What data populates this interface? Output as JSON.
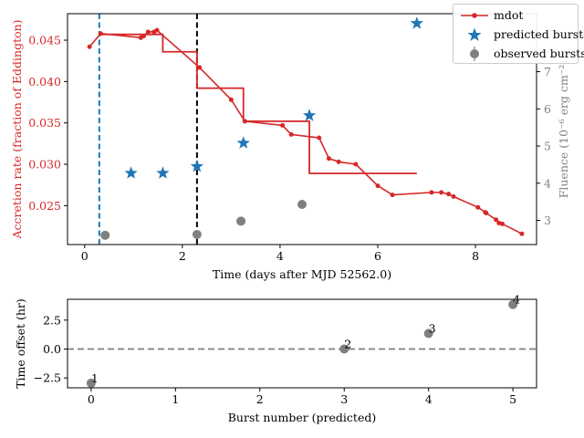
{
  "colors": {
    "mdot": "#d62728",
    "predicted": "#1f77b4",
    "observed": "#808080",
    "fluence_axis": "#808080",
    "vline_start": "#1f77b4",
    "vline_ref": "#000000",
    "zero_line": "#808080"
  },
  "chart_data": [
    {
      "type": "line",
      "xlabel": "Time (days after MJD 52562.0)",
      "ylabel": "Accretion rate (fraction of Eddington)",
      "ylabel_right": "Fluence (10⁻⁶ erg cm⁻²)",
      "xlim": [
        -0.35,
        9.25
      ],
      "ylim": [
        0.0203,
        0.0482
      ],
      "ylim_right": [
        2.35,
        8.56
      ],
      "xticks": [
        "0",
        "2",
        "4",
        "6",
        "8"
      ],
      "xtick_values": [
        0,
        2,
        4,
        6,
        8
      ],
      "yticks": [
        "0.025",
        "0.030",
        "0.035",
        "0.040",
        "0.045"
      ],
      "ytick_values": [
        0.025,
        0.03,
        0.035,
        0.04,
        0.045
      ],
      "yticks_right": [
        "3",
        "4",
        "5",
        "6",
        "7"
      ],
      "ytick_values_right": [
        3,
        4,
        5,
        6,
        7
      ],
      "legend": [
        "mdot",
        "predicted bursts",
        "observed bursts"
      ],
      "legend_position": "top-right",
      "series": [
        {
          "name": "mdot",
          "style": "line-with-points",
          "x": [
            0.1,
            0.33,
            1.15,
            1.21,
            1.3,
            1.42,
            1.48,
            2.35,
            3.0,
            3.28,
            4.05,
            4.23,
            4.8,
            5.0,
            5.2,
            5.55,
            6.0,
            6.3,
            7.1,
            7.3,
            7.45,
            7.55,
            8.05,
            8.2,
            8.22,
            8.42,
            8.48,
            8.55,
            8.95
          ],
          "y": [
            0.0442,
            0.0458,
            0.0453,
            0.0455,
            0.046,
            0.046,
            0.0462,
            0.0417,
            0.0378,
            0.0352,
            0.0347,
            0.0336,
            0.0332,
            0.0307,
            0.0303,
            0.03,
            0.0274,
            0.0263,
            0.0266,
            0.0266,
            0.0264,
            0.0261,
            0.0248,
            0.0242,
            0.0241,
            0.0233,
            0.0229,
            0.0228,
            0.0216
          ]
        },
        {
          "name": "mdot-steps",
          "style": "step",
          "x": [
            0.3,
            1.6,
            1.6,
            2.3,
            2.3,
            3.25,
            3.25,
            4.6,
            4.6,
            6.8
          ],
          "y": [
            0.0457,
            0.0457,
            0.0436,
            0.0436,
            0.0392,
            0.0392,
            0.0352,
            0.0352,
            0.0289,
            0.0289
          ]
        },
        {
          "name": "predicted bursts",
          "style": "star",
          "axis": "right",
          "x": [
            0.95,
            1.6,
            2.3,
            3.25,
            4.6,
            6.8
          ],
          "y": [
            4.27,
            4.27,
            4.45,
            5.08,
            5.82,
            8.3
          ]
        },
        {
          "name": "observed bursts",
          "style": "circle",
          "axis": "right",
          "x": [
            0.42,
            2.3,
            3.2,
            4.45
          ],
          "y": [
            2.6,
            2.62,
            2.98,
            3.43
          ]
        }
      ],
      "vlines": [
        0.3,
        2.3
      ]
    },
    {
      "type": "scatter",
      "xlabel": "Burst number (predicted)",
      "ylabel": "Time offset (hr)",
      "xlim": [
        -0.28,
        5.28
      ],
      "ylim": [
        -3.35,
        4.3
      ],
      "xticks": [
        "0",
        "1",
        "2",
        "3",
        "4",
        "5"
      ],
      "xtick_values": [
        0,
        1,
        2,
        3,
        4,
        5
      ],
      "yticks": [
        "−2.5",
        "0.0",
        "2.5"
      ],
      "ytick_values": [
        -2.5,
        0,
        2.5
      ],
      "hline": 0,
      "points": [
        {
          "x": 0,
          "y": -2.95,
          "label": "1"
        },
        {
          "x": 3,
          "y": 0.0,
          "label": "2"
        },
        {
          "x": 4,
          "y": 1.35,
          "label": "3"
        },
        {
          "x": 5,
          "y": 3.85,
          "label": "4"
        }
      ]
    }
  ]
}
